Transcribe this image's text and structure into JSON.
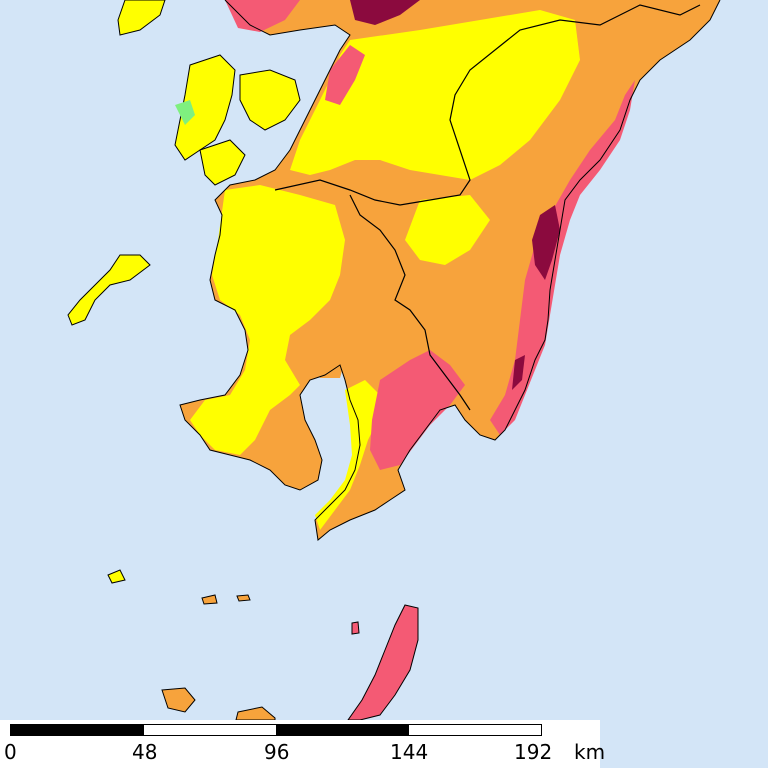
{
  "map": {
    "colors": {
      "sea": "#d3e5f7",
      "class_low": "#7ff07f",
      "class_mid_low": "#ffff00",
      "class_mid": "#f7a33c",
      "class_high": "#f45a74",
      "class_very_high": "#8b0a3e",
      "border": "#000000"
    },
    "scale": {
      "ticks": [
        "0",
        "48",
        "96",
        "144",
        "192"
      ],
      "unit": "km"
    }
  }
}
